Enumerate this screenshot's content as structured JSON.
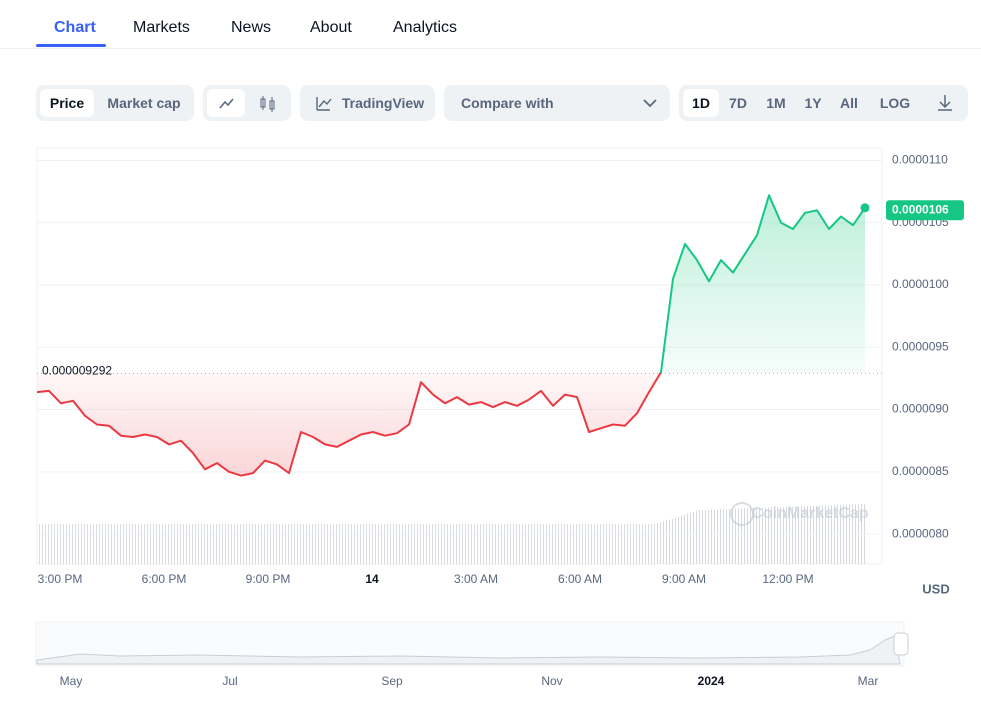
{
  "tabs": [
    "Chart",
    "Markets",
    "News",
    "About",
    "Analytics"
  ],
  "toolbar": {
    "price": "Price",
    "market_cap": "Market cap",
    "tradingview": "TradingView",
    "compare": "Compare with",
    "ranges": [
      "1D",
      "7D",
      "1M",
      "1Y",
      "All"
    ],
    "log": "LOG"
  },
  "chart_data": {
    "type": "line",
    "series": [
      {
        "color": "#16c784",
        "color_below": "#ea3943",
        "values": [
          9.14e-06,
          9.15e-06,
          9.05e-06,
          9.07e-06,
          8.95e-06,
          8.88e-06,
          8.87e-06,
          8.79e-06,
          8.78e-06,
          8.8e-06,
          8.78e-06,
          8.72e-06,
          8.75e-06,
          8.65e-06,
          8.52e-06,
          8.57e-06,
          8.5e-06,
          8.47e-06,
          8.49e-06,
          8.59e-06,
          8.56e-06,
          8.49e-06,
          8.82e-06,
          8.78e-06,
          8.72e-06,
          8.7e-06,
          8.75e-06,
          8.8e-06,
          8.82e-06,
          8.79e-06,
          8.81e-06,
          8.88e-06,
          9.22e-06,
          9.12e-06,
          9.05e-06,
          9.1e-06,
          9.04e-06,
          9.06e-06,
          9.02e-06,
          9.06e-06,
          9.03e-06,
          9.08e-06,
          9.15e-06,
          9.03e-06,
          9.12e-06,
          9.1e-06,
          8.82e-06,
          8.85e-06,
          8.88e-06,
          8.87e-06,
          8.97e-06,
          9.14e-06,
          9.3e-06,
          1.005e-05,
          1.033e-05,
          1.02e-05,
          1.003e-05,
          1.02e-05,
          1.01e-05,
          1.025e-05,
          1.04e-05,
          1.072e-05,
          1.05e-05,
          1.045e-05,
          1.058e-05,
          1.06e-05,
          1.045e-05,
          1.055e-05,
          1.048e-05,
          1.062e-05
        ]
      }
    ],
    "x_labels": [
      "3:00 PM",
      "6:00 PM",
      "9:00 PM",
      "14",
      "3:00 AM",
      "6:00 AM",
      "9:00 AM",
      "12:00 PM"
    ],
    "ylim": [
      7.76e-06,
      1.11e-05
    ],
    "yticks": [
      {
        "value": 1.1e-05,
        "label": "0.0000110"
      },
      {
        "value": 1.05e-05,
        "label": "0.0000105"
      },
      {
        "value": 1e-05,
        "label": "0.0000100"
      },
      {
        "value": 9.5e-06,
        "label": "0.0000095"
      },
      {
        "value": 9e-06,
        "label": "0.0000090"
      },
      {
        "value": 8.5e-06,
        "label": "0.0000085"
      },
      {
        "value": 8e-06,
        "label": "0.0000080"
      }
    ],
    "reference": {
      "value": 9.292e-06,
      "label": "0.000009292"
    },
    "current": {
      "value": 1.06e-05,
      "label": "0.0000106"
    },
    "currency": "USD",
    "watermark": "CoinMarketCap",
    "grid": true,
    "navigator_labels": [
      "May",
      "Jul",
      "Sep",
      "Nov",
      "2024",
      "Mar"
    ]
  }
}
